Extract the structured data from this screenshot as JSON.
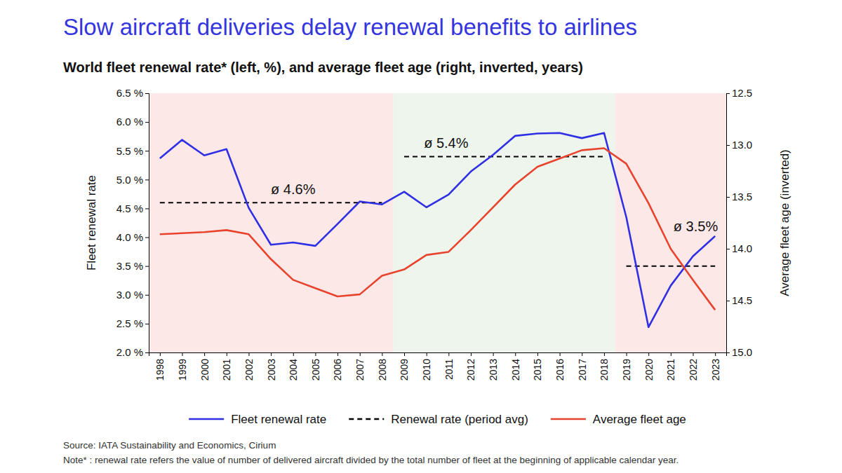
{
  "chart_data": {
    "type": "line",
    "title": "Slow aircraft deliveries delay renewal benefits to airlines",
    "subtitle": "World fleet renewal rate* (left, %), and average fleet age (right, inverted, years)",
    "ylabel": "Fleet renewal rate",
    "y2label": "Average fleet age (inverted)",
    "categories": [
      "1998",
      "1999",
      "2000",
      "2001",
      "2002",
      "2003",
      "2004",
      "2005",
      "2006",
      "2007",
      "2008",
      "2009",
      "2010",
      "2011",
      "2012",
      "2013",
      "2014",
      "2015",
      "2016",
      "2017",
      "2018",
      "2019",
      "2020",
      "2021",
      "2022",
      "2023"
    ],
    "ylim": [
      2.0,
      6.5
    ],
    "yticks": [
      {
        "value": 2.0,
        "label": "2.0 %"
      },
      {
        "value": 2.5,
        "label": "2.5 %"
      },
      {
        "value": 3.0,
        "label": "3.0 %"
      },
      {
        "value": 3.5,
        "label": "3.5 %"
      },
      {
        "value": 4.0,
        "label": "4.0 %"
      },
      {
        "value": 4.5,
        "label": "4.5 %"
      },
      {
        "value": 5.0,
        "label": "5.0 %"
      },
      {
        "value": 5.5,
        "label": "5.5 %"
      },
      {
        "value": 6.0,
        "label": "6.0 %"
      },
      {
        "value": 6.5,
        "label": "6.5 %"
      }
    ],
    "y2lim": [
      15.0,
      12.5
    ],
    "y2ticks": [
      12.5,
      {
        "value": 13.0,
        "label": "13.0"
      },
      13.5,
      {
        "value": 14.0,
        "label": "14.0"
      },
      14.5,
      {
        "value": 15.0,
        "label": "15.0"
      }
    ],
    "grid": false,
    "legend": "bottom",
    "series": [
      {
        "name": "Fleet renewal rate",
        "type": "line",
        "color": "#2f2fe4",
        "values": [
          5.37,
          5.69,
          5.42,
          5.53,
          4.51,
          3.87,
          3.91,
          3.85,
          4.23,
          4.62,
          4.57,
          4.79,
          4.52,
          4.74,
          5.14,
          5.43,
          5.76,
          5.8,
          5.81,
          5.72,
          5.81,
          4.35,
          2.44,
          3.16,
          3.67,
          4.02
        ]
      },
      {
        "name": "Renewal rate (period avg)",
        "type": "period_avg",
        "color": "#000000",
        "line_style": "dashed",
        "periods": [
          {
            "start": "1998",
            "end": "2008",
            "value": 4.6,
            "label": "ø 4.6%"
          },
          {
            "start": "2009",
            "end": "2018",
            "value": 5.4,
            "label": "ø 5.4%"
          },
          {
            "start": "2019",
            "end": "2023",
            "value": 3.5,
            "label": "ø 3.5%"
          }
        ]
      },
      {
        "name": "Average fleet age",
        "type": "line",
        "color": "#e8432d",
        "axis": "y2",
        "values": [
          13.86,
          13.85,
          13.84,
          13.82,
          13.86,
          14.1,
          14.3,
          14.38,
          14.46,
          14.44,
          14.26,
          14.2,
          14.06,
          14.03,
          13.82,
          13.6,
          13.38,
          13.21,
          13.13,
          13.05,
          13.03,
          13.18,
          13.56,
          14.0,
          14.3,
          14.59
        ]
      }
    ],
    "source": "Source: IATA Sustainability and Economics, Cirium",
    "note": "Note* : renewal rate refers the value of number of delivered aircraft divided by the total number of fleet at the beginning of applicable calendar year."
  }
}
